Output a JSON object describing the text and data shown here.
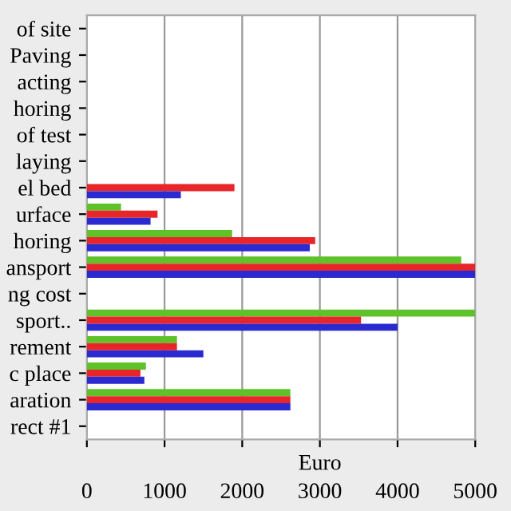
{
  "chart_data": {
    "type": "bar",
    "orientation": "horizontal",
    "xlabel": "Euro",
    "categories": [
      "of site",
      "Paving",
      "acting",
      "horing",
      "of test",
      "laying",
      "el bed",
      "urface",
      "horing",
      "ansport",
      "ng cost",
      "sport..",
      "rement",
      "c place",
      "aration",
      "rect #1"
    ],
    "series": [
      {
        "color": "#5ec228",
        "values": [
          null,
          null,
          null,
          null,
          null,
          null,
          null,
          440,
          1870,
          4820,
          null,
          5000,
          1160,
          760,
          2620,
          null
        ]
      },
      {
        "color": "#e8262a",
        "values": [
          null,
          null,
          null,
          null,
          null,
          null,
          1900,
          910,
          2940,
          5000,
          null,
          3530,
          1160,
          690,
          2620,
          null
        ]
      },
      {
        "color": "#2a2ad0",
        "values": [
          null,
          null,
          null,
          null,
          null,
          null,
          1210,
          820,
          2870,
          5000,
          null,
          4000,
          1500,
          740,
          2620,
          null
        ]
      }
    ],
    "xlim": [
      0,
      5000
    ],
    "xticks": [
      0,
      1000,
      2000,
      3000,
      4000,
      5000
    ],
    "grid": "x",
    "legend": false
  }
}
